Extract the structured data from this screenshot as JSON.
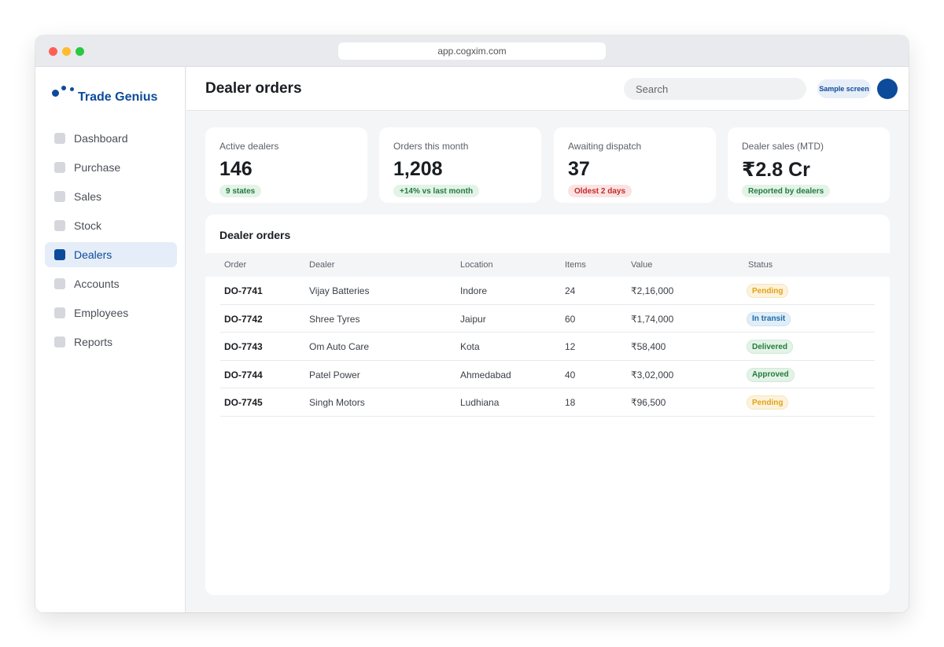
{
  "browser": {
    "url": "app.cogxim.com"
  },
  "brand": {
    "name": "Trade Genius"
  },
  "sidebar": {
    "items": [
      {
        "label": "Dashboard",
        "active": false
      },
      {
        "label": "Purchase",
        "active": false
      },
      {
        "label": "Sales",
        "active": false
      },
      {
        "label": "Stock",
        "active": false
      },
      {
        "label": "Dealers",
        "active": true
      },
      {
        "label": "Accounts",
        "active": false
      },
      {
        "label": "Employees",
        "active": false
      },
      {
        "label": "Reports",
        "active": false
      }
    ]
  },
  "header": {
    "title": "Dealer orders",
    "search_placeholder": "Search",
    "badge": "Sample screen"
  },
  "stats": [
    {
      "label": "Active dealers",
      "value": "146",
      "pill": "9 states",
      "pill_tone": "green"
    },
    {
      "label": "Orders this month",
      "value": "1,208",
      "pill": "+14% vs last month",
      "pill_tone": "green"
    },
    {
      "label": "Awaiting dispatch",
      "value": "37",
      "pill": "Oldest 2 days",
      "pill_tone": "red"
    },
    {
      "label": "Dealer sales (MTD)",
      "value": "₹2.8 Cr",
      "pill": "Reported by dealers",
      "pill_tone": "green"
    }
  ],
  "orders_table": {
    "title": "Dealer orders",
    "columns": [
      "Order",
      "Dealer",
      "Location",
      "Items",
      "Value",
      "Status"
    ],
    "rows": [
      {
        "order": "DO-7741",
        "dealer": "Vijay Batteries",
        "location": "Indore",
        "items": "24",
        "value": "₹2,16,000",
        "status": "Pending",
        "status_tone": "pending"
      },
      {
        "order": "DO-7742",
        "dealer": "Shree Tyres",
        "location": "Jaipur",
        "items": "60",
        "value": "₹1,74,000",
        "status": "In transit",
        "status_tone": "transit"
      },
      {
        "order": "DO-7743",
        "dealer": "Om Auto Care",
        "location": "Kota",
        "items": "12",
        "value": "₹58,400",
        "status": "Delivered",
        "status_tone": "delivered"
      },
      {
        "order": "DO-7744",
        "dealer": "Patel Power",
        "location": "Ahmedabad",
        "items": "40",
        "value": "₹3,02,000",
        "status": "Approved",
        "status_tone": "approved"
      },
      {
        "order": "DO-7745",
        "dealer": "Singh Motors",
        "location": "Ludhiana",
        "items": "18",
        "value": "₹96,500",
        "status": "Pending",
        "status_tone": "pending"
      }
    ]
  },
  "colors": {
    "brand": "#0c4b9a",
    "pending": "#e0a21a",
    "transit": "#1e6aa8",
    "success": "#247a3e",
    "danger": "#c62a2a"
  }
}
